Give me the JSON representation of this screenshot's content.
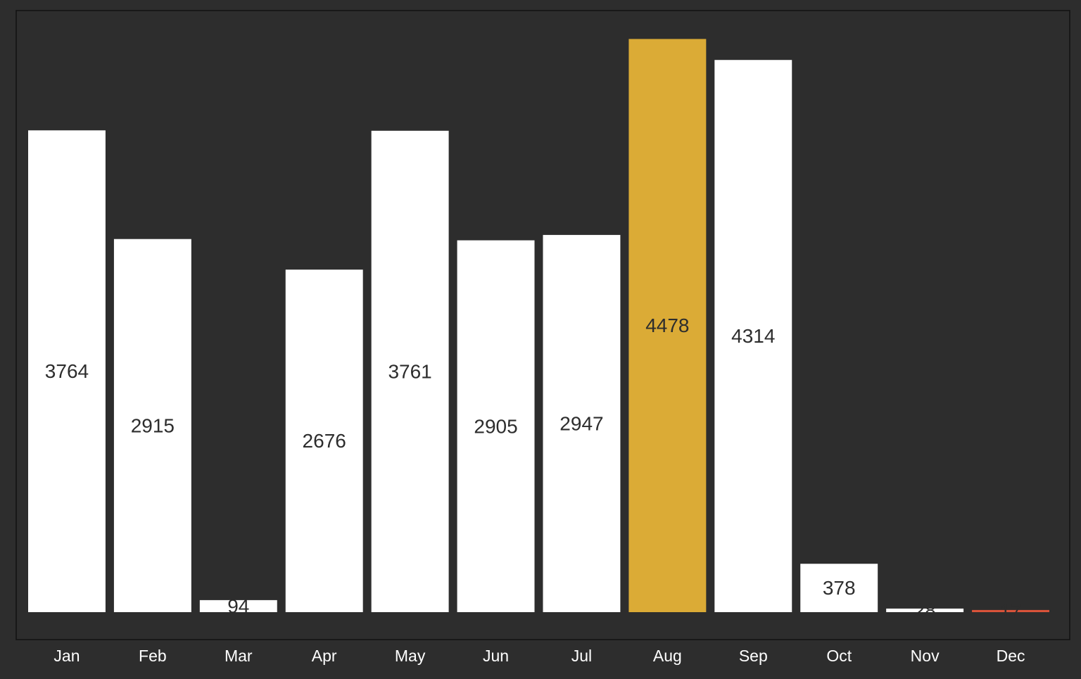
{
  "chart_data": {
    "type": "bar",
    "title": "",
    "xlabel": "",
    "ylabel": "",
    "categories": [
      "Jan",
      "Feb",
      "Mar",
      "Apr",
      "May",
      "Jun",
      "Jul",
      "Aug",
      "Sep",
      "Oct",
      "Nov",
      "Dec"
    ],
    "values": [
      3764,
      2915,
      94,
      2676,
      3761,
      2905,
      2947,
      4478,
      4314,
      378,
      28,
      17
    ],
    "value_labels": [
      "3764",
      "2915",
      "94",
      "2676",
      "3761",
      "2905",
      "2947",
      "4478",
      "4314",
      "378",
      "28",
      "17"
    ],
    "ylim": [
      0,
      4700
    ],
    "grid": false,
    "legend": "none",
    "colors": {
      "background": "#2d2d2d",
      "plot_border": "#111111",
      "bar_default": "#ffffff",
      "bar_max": "#dbab36",
      "bar_min": "#d9533a",
      "value_label": "#2d2d2d",
      "tick_label": "#ffffff"
    },
    "highlight": {
      "max_category": "Aug",
      "min_category": "Dec"
    }
  }
}
